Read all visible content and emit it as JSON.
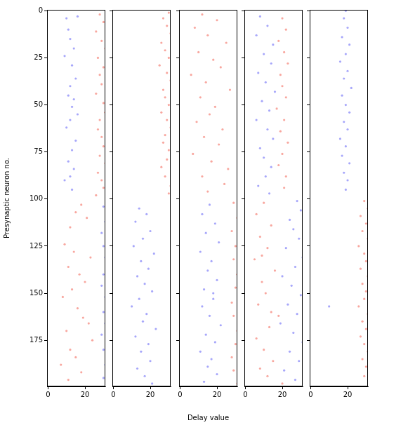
{
  "chart_data": [
    {
      "type": "scatter",
      "ylabel": "Presynaptic neuron no.",
      "xlim": [
        -0.5,
        31
      ],
      "xticks": [
        0,
        20
      ],
      "ylim": [
        199.5,
        -0.5
      ],
      "yticks": [
        0,
        25,
        50,
        75,
        100,
        125,
        150,
        175
      ],
      "grid": false,
      "series": [
        {
          "color": "#3b3bf5",
          "x": [
            10,
            16,
            11,
            12,
            14,
            9,
            13,
            15,
            12,
            11,
            14,
            13,
            16,
            12,
            10,
            15,
            13,
            11,
            14,
            12,
            9,
            13
          ],
          "values": [
            4,
            3,
            10,
            15,
            20,
            24,
            29,
            36,
            40,
            45,
            47,
            51,
            55,
            58,
            62,
            69,
            74,
            80,
            84,
            88,
            90,
            95
          ]
        },
        {
          "color": "#f03c2a",
          "x": [
            28,
            30,
            26,
            29,
            31,
            27,
            30,
            28,
            29,
            26,
            30,
            31,
            28,
            27,
            29,
            30,
            28,
            31,
            27,
            29,
            30,
            26
          ],
          "values": [
            2,
            6,
            11,
            16,
            20,
            25,
            30,
            34,
            39,
            44,
            49,
            54,
            58,
            63,
            67,
            72,
            77,
            81,
            86,
            90,
            94,
            98
          ]
        },
        {
          "color": "#f03c2a",
          "x": [
            18,
            15,
            21,
            12,
            9,
            14,
            23,
            11,
            17,
            20,
            13,
            8,
            16,
            19,
            22,
            10,
            24,
            12,
            15,
            7,
            18,
            11
          ],
          "values": [
            103,
            107,
            110,
            115,
            124,
            128,
            131,
            136,
            140,
            144,
            148,
            152,
            158,
            163,
            166,
            170,
            175,
            180,
            184,
            188,
            192,
            196
          ]
        },
        {
          "color": "#3b3bf5",
          "x": [
            30,
            31,
            29,
            30,
            31,
            30,
            29,
            31,
            30,
            31,
            29,
            30,
            31,
            30
          ],
          "values": [
            104,
            112,
            118,
            125,
            131,
            140,
            146,
            152,
            160,
            166,
            172,
            180,
            188,
            195
          ]
        }
      ]
    },
    {
      "type": "scatter",
      "tick_labels": "x",
      "xlim": [
        -0.5,
        31
      ],
      "xticks": [
        0,
        20
      ],
      "ylim": [
        199.5,
        -0.5
      ],
      "yticks": [
        0,
        25,
        50,
        75,
        100,
        125,
        150,
        175
      ],
      "grid": false,
      "series": [
        {
          "color": "#f03c2a",
          "x": [
            30,
            27,
            29,
            31,
            26,
            28,
            30,
            25,
            29,
            31,
            27,
            28,
            30,
            26,
            29,
            31,
            28,
            27,
            30,
            29,
            26,
            28,
            31,
            30
          ],
          "values": [
            1,
            4,
            8,
            12,
            17,
            21,
            25,
            29,
            33,
            37,
            42,
            46,
            50,
            54,
            58,
            62,
            66,
            70,
            74,
            79,
            83,
            88,
            93,
            97
          ]
        },
        {
          "color": "#3b3bf5",
          "x": [
            14,
            18,
            12,
            20,
            16,
            11,
            22,
            15,
            19,
            13,
            17,
            21,
            14,
            10,
            18,
            16,
            23,
            12,
            19,
            15,
            20,
            13,
            17,
            21
          ],
          "values": [
            105,
            108,
            112,
            117,
            121,
            125,
            129,
            133,
            137,
            141,
            145,
            149,
            153,
            157,
            161,
            165,
            169,
            173,
            177,
            181,
            186,
            190,
            194,
            198
          ]
        }
      ]
    },
    {
      "type": "scatter",
      "tick_labels": "x",
      "xlabel": "Delay value",
      "xlim": [
        -0.5,
        31
      ],
      "xticks": [
        0,
        20
      ],
      "ylim": [
        199.5,
        -0.5
      ],
      "yticks": [
        0,
        25,
        50,
        75,
        100,
        125,
        150,
        175
      ],
      "grid": false,
      "series": [
        {
          "color": "#f03c2a",
          "x": [
            12,
            20,
            8,
            15,
            25,
            10,
            18,
            22,
            6,
            14,
            27,
            11,
            19,
            16,
            9,
            23,
            13,
            21,
            7,
            17,
            26,
            12,
            24,
            15
          ],
          "values": [
            2,
            5,
            9,
            13,
            17,
            22,
            26,
            30,
            34,
            38,
            42,
            46,
            51,
            55,
            59,
            63,
            67,
            71,
            76,
            80,
            84,
            88,
            92,
            96
          ]
        },
        {
          "color": "#3b3bf5",
          "x": [
            16,
            12,
            19,
            14,
            21,
            11,
            17,
            15,
            20,
            13,
            18,
            12,
            16,
            22,
            14,
            19,
            11,
            17,
            15,
            20,
            13,
            18
          ],
          "values": [
            103,
            108,
            113,
            118,
            123,
            128,
            133,
            138,
            143,
            148,
            153,
            157,
            162,
            167,
            172,
            176,
            181,
            185,
            189,
            193,
            197,
            150
          ]
        },
        {
          "color": "#f03c2a",
          "x": [
            29,
            31,
            28,
            30,
            29,
            31,
            30,
            28,
            29,
            31,
            30,
            28,
            29,
            31
          ],
          "values": [
            102,
            110,
            117,
            125,
            132,
            140,
            147,
            155,
            162,
            170,
            177,
            184,
            191,
            198
          ]
        }
      ]
    },
    {
      "type": "scatter",
      "tick_labels": "x",
      "xlim": [
        -0.5,
        31
      ],
      "xticks": [
        0,
        20
      ],
      "ylim": [
        199.5,
        -0.5
      ],
      "yticks": [
        0,
        25,
        50,
        75,
        100,
        125,
        150,
        175
      ],
      "grid": false,
      "series": [
        {
          "color": "#3b3bf5",
          "x": [
            8,
            12,
            6,
            15,
            10,
            14,
            7,
            11,
            16,
            9,
            13,
            6,
            12,
            15,
            8,
            10,
            14,
            11,
            7,
            13
          ],
          "values": [
            3,
            8,
            13,
            18,
            23,
            28,
            33,
            38,
            43,
            48,
            53,
            58,
            63,
            68,
            73,
            78,
            83,
            88,
            93,
            97
          ]
        },
        {
          "color": "#f03c2a",
          "x": [
            20,
            22,
            18,
            21,
            23,
            19,
            20,
            22,
            17,
            21,
            19,
            23,
            20,
            18,
            22,
            21
          ],
          "values": [
            4,
            10,
            16,
            22,
            28,
            34,
            40,
            46,
            52,
            58,
            64,
            70,
            76,
            82,
            88,
            94
          ]
        },
        {
          "color": "#3b3bf5",
          "x": [
            28,
            30,
            24,
            26,
            29,
            22,
            31,
            27,
            20,
            25,
            30,
            23,
            28,
            19,
            26,
            31,
            24,
            29,
            21,
            27
          ],
          "values": [
            101,
            106,
            111,
            116,
            121,
            126,
            131,
            136,
            141,
            146,
            151,
            156,
            161,
            166,
            171,
            176,
            181,
            186,
            191,
            196
          ]
        },
        {
          "color": "#f03c2a",
          "x": [
            10,
            6,
            14,
            8,
            12,
            5,
            16,
            9,
            11,
            7,
            18,
            13,
            6,
            10,
            15,
            8,
            12,
            20,
            9,
            14
          ],
          "values": [
            102,
            108,
            114,
            120,
            126,
            132,
            138,
            144,
            150,
            156,
            162,
            168,
            174,
            180,
            186,
            190,
            194,
            198,
            130,
            160
          ]
        }
      ]
    },
    {
      "type": "scatter",
      "tick_labels": "x",
      "xlim": [
        -0.5,
        31
      ],
      "xticks": [
        0,
        20
      ],
      "ylim": [
        199.5,
        -0.5
      ],
      "yticks": [
        0,
        25,
        50,
        75,
        100,
        125,
        150,
        175
      ],
      "grid": false,
      "series": [
        {
          "color": "#3b3bf5",
          "x": [
            19,
            18,
            20,
            17,
            21,
            19,
            16,
            20,
            18,
            22,
            17,
            19,
            21,
            18,
            20,
            16,
            19,
            17,
            21,
            18,
            20,
            19,
            10
          ],
          "values": [
            0,
            4,
            9,
            14,
            18,
            23,
            27,
            32,
            36,
            41,
            45,
            50,
            54,
            59,
            63,
            68,
            72,
            77,
            81,
            86,
            90,
            95,
            157
          ]
        },
        {
          "color": "#f03c2a",
          "x": [
            29,
            31,
            27,
            30,
            28,
            31,
            26,
            29,
            30,
            27,
            31,
            28,
            30,
            29,
            26,
            31,
            28,
            30,
            27,
            29,
            31,
            28,
            30,
            29
          ],
          "values": [
            101,
            105,
            109,
            113,
            117,
            121,
            125,
            129,
            133,
            137,
            141,
            145,
            149,
            153,
            157,
            161,
            165,
            169,
            173,
            177,
            181,
            185,
            189,
            194
          ]
        }
      ]
    }
  ]
}
